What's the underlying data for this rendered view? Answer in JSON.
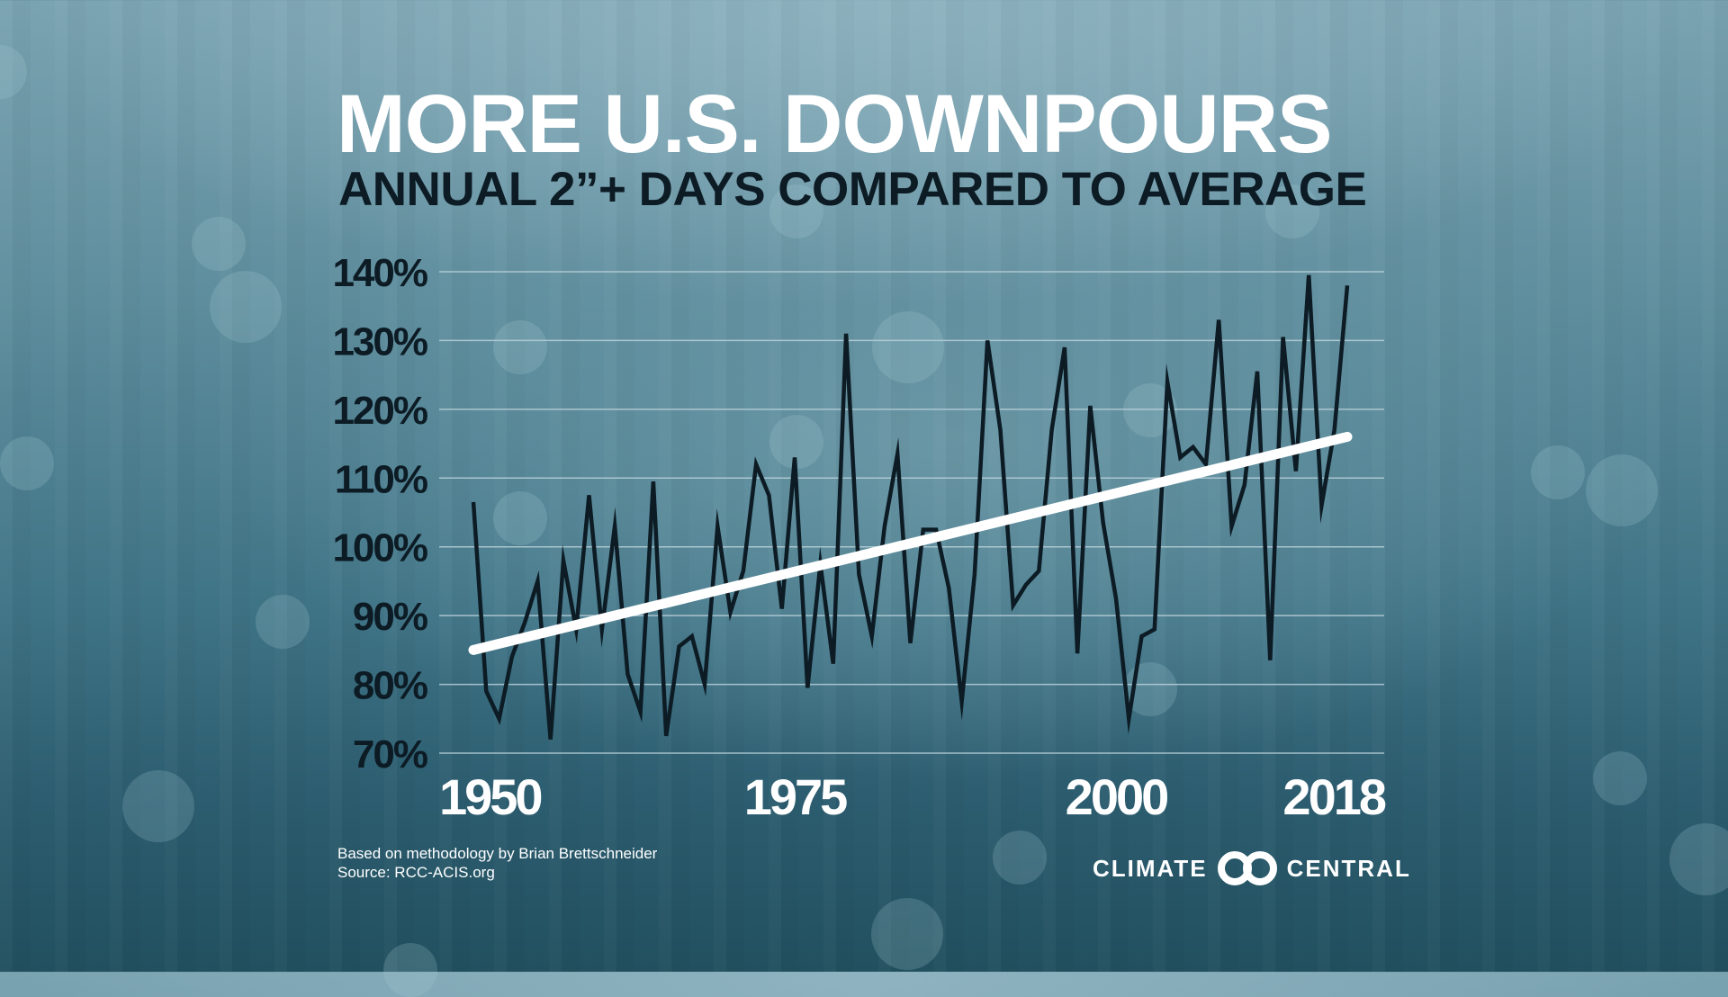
{
  "header": {
    "title": "MORE U.S. DOWNPOURS",
    "subtitle": "ANNUAL 2”+ DAYS COMPARED TO AVERAGE"
  },
  "footer": {
    "methodology": "Based on methodology by Brian Brettschneider",
    "source": "Source: RCC-ACIS.org"
  },
  "logo": {
    "left_word": "CLIMATE",
    "right_word": "CENTRAL",
    "icon": "interlocking-rings-icon"
  },
  "colors": {
    "series_line": "#0c1b24",
    "trend_line": "#ffffff",
    "gridline": "#b9d0d8",
    "title_text": "#ffffff",
    "subtitle_text": "#0c1b24"
  },
  "chart_data": {
    "type": "line",
    "title": "MORE U.S. DOWNPOURS",
    "subtitle": "ANNUAL 2”+ DAYS COMPARED TO AVERAGE",
    "xlabel": "",
    "ylabel": "",
    "xlim": [
      1950,
      2018
    ],
    "ylim": [
      70,
      140
    ],
    "grid": true,
    "legend": "none",
    "x_ticks": [
      1950,
      1975,
      2000,
      2018
    ],
    "x_tick_labels": [
      "1950",
      "1975",
      "2000",
      "2018"
    ],
    "y_ticks": [
      140,
      130,
      120,
      110,
      100,
      90,
      80,
      70
    ],
    "y_tick_labels": [
      "140%",
      "130%",
      "120%",
      "110%",
      "100%",
      "90%",
      "80%",
      "70%"
    ],
    "x": [
      1950,
      1951,
      1952,
      1953,
      1954,
      1955,
      1956,
      1957,
      1958,
      1959,
      1960,
      1961,
      1962,
      1963,
      1964,
      1965,
      1966,
      1967,
      1968,
      1969,
      1970,
      1971,
      1972,
      1973,
      1974,
      1975,
      1976,
      1977,
      1978,
      1979,
      1980,
      1981,
      1982,
      1983,
      1984,
      1985,
      1986,
      1987,
      1988,
      1989,
      1990,
      1991,
      1992,
      1993,
      1994,
      1995,
      1996,
      1997,
      1998,
      1999,
      2000,
      2001,
      2002,
      2003,
      2004,
      2005,
      2006,
      2007,
      2008,
      2009,
      2010,
      2011,
      2012,
      2013,
      2014,
      2015,
      2016,
      2017,
      2018
    ],
    "series": [
      {
        "name": "Annual 2\"+ days (% of average)",
        "values": [
          106.5,
          79,
          75,
          84,
          89,
          95,
          72,
          98,
          88,
          107.5,
          88,
          103,
          81.5,
          76,
          109.5,
          72.5,
          85.5,
          87,
          80,
          103,
          90.5,
          96.5,
          112,
          107.5,
          91,
          113,
          79.5,
          97.5,
          83,
          131,
          96,
          87,
          103,
          113.5,
          86,
          102.5,
          102.5,
          94,
          77.5,
          96,
          130,
          117,
          91.5,
          94.5,
          96.5,
          117,
          129,
          84.5,
          120.5,
          103.5,
          92.5,
          75,
          87,
          88,
          124,
          113,
          114.5,
          112,
          133,
          103,
          109,
          125.5,
          83.5,
          130.5,
          111,
          139.5,
          106,
          117,
          138
        ]
      },
      {
        "name": "Trend",
        "x": [
          1950,
          2018
        ],
        "values": [
          85,
          116
        ]
      }
    ]
  }
}
